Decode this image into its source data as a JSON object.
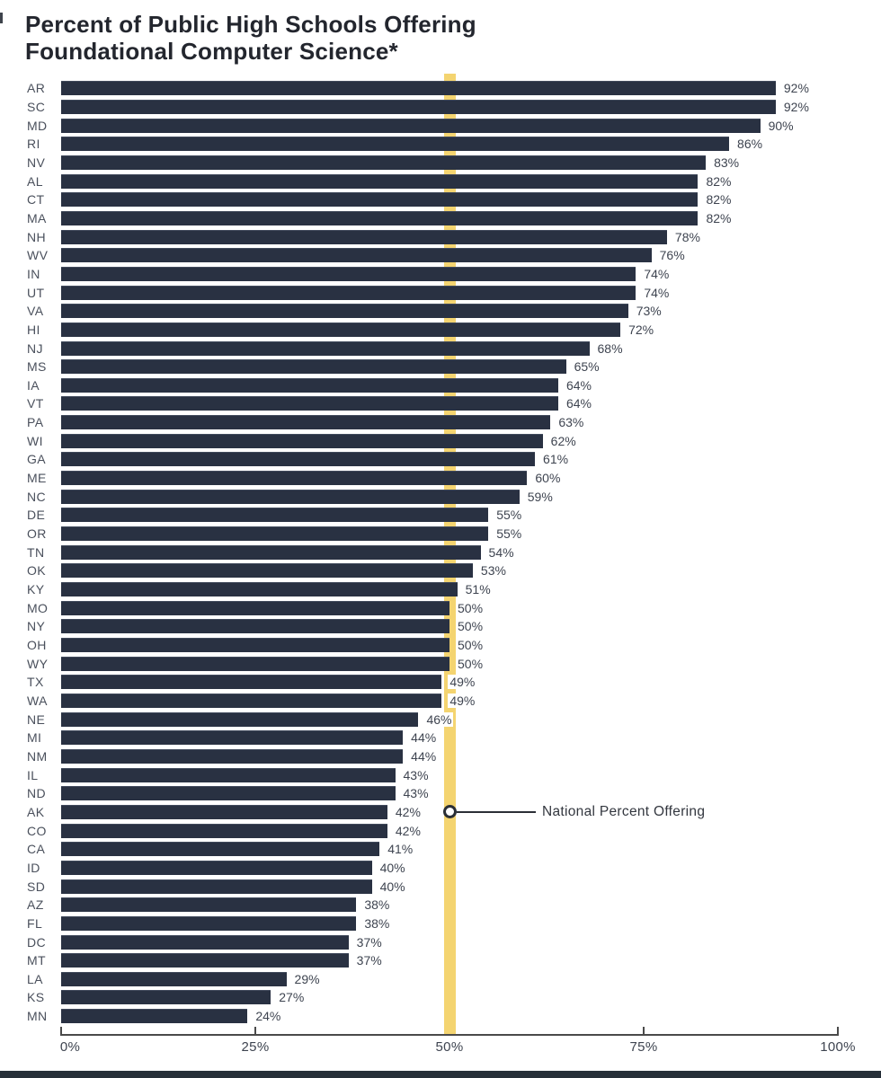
{
  "title": {
    "line1": "Percent of Public High Schools Offering",
    "line2": "Foundational Computer Science*"
  },
  "annotation": {
    "label": "National Percent Offering"
  },
  "colors": {
    "bar": "#293142",
    "bar_highlight": "#414a5c",
    "reference_line": "#f4d470",
    "axis": "#4a4a4a",
    "text": "#3e4450",
    "title_text": "#23262e",
    "footer_bar": "#262f38",
    "background": "#ffffff"
  },
  "chart_data": {
    "type": "bar",
    "orientation": "horizontal",
    "title": "Percent of Public High Schools Offering Foundational Computer Science*",
    "xlabel": "",
    "ylabel": "",
    "xlim": [
      0,
      100
    ],
    "x_ticks": [
      "0%",
      "25%",
      "50%",
      "75%",
      "100%"
    ],
    "value_suffix": "%",
    "grid": false,
    "legend": false,
    "reference_line": {
      "value": 50,
      "label": "National Percent Offering"
    },
    "categories": [
      "AR",
      "SC",
      "MD",
      "RI",
      "NV",
      "AL",
      "CT",
      "MA",
      "NH",
      "WV",
      "IN",
      "UT",
      "VA",
      "HI",
      "NJ",
      "MS",
      "IA",
      "VT",
      "PA",
      "WI",
      "GA",
      "ME",
      "NC",
      "DE",
      "OR",
      "TN",
      "OK",
      "KY",
      "MO",
      "NY",
      "OH",
      "WY",
      "TX",
      "WA",
      "NE",
      "MI",
      "NM",
      "IL",
      "ND",
      "AK",
      "CO",
      "CA",
      "ID",
      "SD",
      "AZ",
      "FL",
      "DC",
      "MT",
      "LA",
      "KS",
      "MN"
    ],
    "values": [
      92,
      92,
      90,
      86,
      83,
      82,
      82,
      82,
      78,
      76,
      74,
      74,
      73,
      72,
      68,
      65,
      64,
      64,
      63,
      62,
      61,
      60,
      59,
      55,
      55,
      54,
      53,
      51,
      50,
      50,
      50,
      50,
      49,
      49,
      46,
      44,
      44,
      43,
      43,
      42,
      42,
      41,
      40,
      40,
      38,
      38,
      37,
      37,
      29,
      27,
      24
    ]
  }
}
